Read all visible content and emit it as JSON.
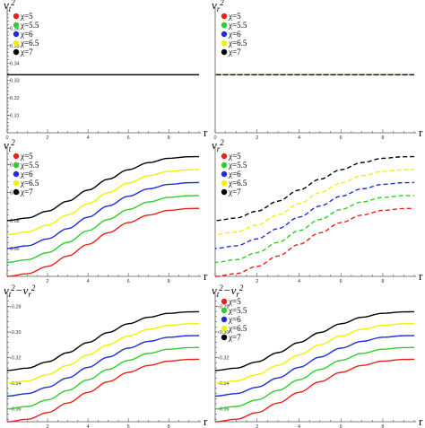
{
  "figure": {
    "legend_entries": [
      {
        "label": "χ=5",
        "color": "#e8221a"
      },
      {
        "label": "χ=5.5",
        "color": "#2bd02b"
      },
      {
        "label": "χ=6",
        "color": "#1f2fd6"
      },
      {
        "label": "χ=6.5",
        "color": "#f2f200"
      },
      {
        "label": "χ=7",
        "color": "#000000"
      }
    ]
  },
  "chart_data": [
    {
      "type": "line",
      "ylabel": "v_t^2",
      "xlabel": "r",
      "xlim": [
        0,
        9.5
      ],
      "ylim": [
        0.3,
        0.37
      ],
      "xticks": [
        0,
        2,
        4,
        6,
        8
      ],
      "yticks": [
        0.31,
        0.32,
        0.33,
        0.34,
        0.35,
        0.36
      ],
      "ytick_labels": [
        "0.31",
        "0.32",
        "0.33",
        "0.34",
        "0.35",
        "0.36"
      ],
      "legend": true,
      "legend_position": "top-left",
      "dashed": false,
      "series": [
        {
          "name": "χ=5",
          "x": [
            0,
            9.5
          ],
          "y": [
            0.3333,
            0.3333
          ]
        },
        {
          "name": "χ=5.5",
          "x": [
            0,
            9.5
          ],
          "y": [
            0.3333,
            0.3333
          ]
        },
        {
          "name": "χ=6",
          "x": [
            0,
            9.5
          ],
          "y": [
            0.3333,
            0.3333
          ]
        },
        {
          "name": "χ=6.5",
          "x": [
            0,
            9.5
          ],
          "y": [
            0.3333,
            0.3333
          ]
        },
        {
          "name": "χ=7",
          "x": [
            0,
            9.5
          ],
          "y": [
            0.3333,
            0.3333
          ]
        }
      ]
    },
    {
      "type": "line",
      "ylabel": "v_r^2",
      "xlabel": "r",
      "xlim": [
        0,
        9.5
      ],
      "ylim": [
        0.3,
        0.37
      ],
      "xticks": [
        0,
        2,
        4,
        6,
        8
      ],
      "yticks": [],
      "ytick_labels": [],
      "legend": true,
      "legend_position": "top-left",
      "dashed": true,
      "series": [
        {
          "name": "χ=5",
          "x": [
            0,
            9.5
          ],
          "y": [
            0.3333,
            0.3333
          ]
        },
        {
          "name": "χ=5.5",
          "x": [
            0,
            9.5
          ],
          "y": [
            0.3333,
            0.3333
          ]
        },
        {
          "name": "χ=6",
          "x": [
            0,
            9.5
          ],
          "y": [
            0.3333,
            0.3333
          ]
        },
        {
          "name": "χ=6.5",
          "x": [
            0,
            9.5
          ],
          "y": [
            0.3333,
            0.3333
          ]
        },
        {
          "name": "χ=7",
          "x": [
            0,
            9.5
          ],
          "y": [
            0.3333,
            0.3333
          ]
        }
      ]
    },
    {
      "type": "line",
      "ylabel": "v_t^2",
      "xlabel": "r",
      "xlim": [
        0,
        9.5
      ],
      "ylim": [
        0.04,
        0.13
      ],
      "xticks": [
        2,
        4,
        6,
        8
      ],
      "yticks": [
        0.06,
        0.08,
        0.1,
        0.12
      ],
      "ytick_labels": [
        "0.06",
        "0.08",
        "0.10",
        "0.12"
      ],
      "legend": true,
      "legend_position": "top-left",
      "dashed": false,
      "series": [
        {
          "name": "χ=5",
          "x": [
            0,
            1,
            2,
            3,
            4,
            5,
            6,
            7,
            8,
            9,
            9.5
          ],
          "y": [
            0.04,
            0.0419,
            0.0471,
            0.0546,
            0.0629,
            0.0712,
            0.0785,
            0.0839,
            0.0873,
            0.0886,
            0.0887
          ]
        },
        {
          "name": "χ=5.5",
          "x": [
            0,
            1,
            2,
            3,
            4,
            5,
            6,
            7,
            8,
            9,
            9.5
          ],
          "y": [
            0.05,
            0.0519,
            0.057,
            0.0644,
            0.0727,
            0.0808,
            0.0879,
            0.0933,
            0.0966,
            0.0978,
            0.0979
          ]
        },
        {
          "name": "χ=6",
          "x": [
            0,
            1,
            2,
            3,
            4,
            5,
            6,
            7,
            8,
            9,
            9.5
          ],
          "y": [
            0.06,
            0.0619,
            0.0669,
            0.0742,
            0.0824,
            0.0904,
            0.0974,
            0.1027,
            0.1059,
            0.1071,
            0.1072
          ]
        },
        {
          "name": "χ=6.5",
          "x": [
            0,
            1,
            2,
            3,
            4,
            5,
            6,
            7,
            8,
            9,
            9.5
          ],
          "y": [
            0.07,
            0.0718,
            0.0768,
            0.084,
            0.0921,
            0.1,
            0.1069,
            0.1121,
            0.1152,
            0.1164,
            0.1165
          ]
        },
        {
          "name": "χ=7",
          "x": [
            0,
            1,
            2,
            3,
            4,
            5,
            6,
            7,
            8,
            9,
            9.5
          ],
          "y": [
            0.08,
            0.0818,
            0.0867,
            0.0939,
            0.1018,
            0.1096,
            0.1164,
            0.1215,
            0.1246,
            0.1257,
            0.1258
          ]
        }
      ]
    },
    {
      "type": "line",
      "ylabel": "v_r^2",
      "xlabel": "r",
      "xlim": [
        0,
        9.5
      ],
      "ylim": [
        0.04,
        0.13
      ],
      "xticks": [
        2,
        4,
        6,
        8
      ],
      "yticks": [],
      "ytick_labels": [],
      "legend": true,
      "legend_position": "top-left",
      "dashed": true,
      "series": [
        {
          "name": "χ=5",
          "x": [
            0,
            1,
            2,
            3,
            4,
            5,
            6,
            7,
            8,
            9,
            9.5
          ],
          "y": [
            0.04,
            0.0419,
            0.0471,
            0.0546,
            0.0629,
            0.0712,
            0.0785,
            0.0839,
            0.0873,
            0.0886,
            0.0887
          ]
        },
        {
          "name": "χ=5.5",
          "x": [
            0,
            1,
            2,
            3,
            4,
            5,
            6,
            7,
            8,
            9,
            9.5
          ],
          "y": [
            0.05,
            0.0519,
            0.057,
            0.0644,
            0.0727,
            0.0808,
            0.0879,
            0.0933,
            0.0966,
            0.0978,
            0.0979
          ]
        },
        {
          "name": "χ=6",
          "x": [
            0,
            1,
            2,
            3,
            4,
            5,
            6,
            7,
            8,
            9,
            9.5
          ],
          "y": [
            0.06,
            0.0619,
            0.0669,
            0.0742,
            0.0824,
            0.0904,
            0.0974,
            0.1027,
            0.1059,
            0.1071,
            0.1072
          ]
        },
        {
          "name": "χ=6.5",
          "x": [
            0,
            1,
            2,
            3,
            4,
            5,
            6,
            7,
            8,
            9,
            9.5
          ],
          "y": [
            0.07,
            0.0718,
            0.0768,
            0.084,
            0.0921,
            0.1,
            0.1069,
            0.1121,
            0.1152,
            0.1164,
            0.1165
          ]
        },
        {
          "name": "χ=7",
          "x": [
            0,
            1,
            2,
            3,
            4,
            5,
            6,
            7,
            8,
            9,
            9.5
          ],
          "y": [
            0.08,
            0.0818,
            0.0867,
            0.0939,
            0.1018,
            0.1096,
            0.1164,
            0.1215,
            0.1246,
            0.1257,
            0.1258
          ]
        }
      ]
    },
    {
      "type": "line",
      "ylabel": "v_t^2−v_r^2",
      "xlabel": "r",
      "xlim": [
        0,
        9.5
      ],
      "ylim": [
        -0.37,
        -0.272
      ],
      "xticks": [
        2,
        4,
        6,
        8
      ],
      "yticks": [
        -0.36,
        -0.34,
        -0.32,
        -0.3,
        -0.28
      ],
      "ytick_labels": [
        "-0.36",
        "-0.34",
        "-0.32",
        "-0.30",
        "-0.28"
      ],
      "legend": false,
      "dashed": false,
      "series": [
        {
          "name": "χ=5",
          "x": [
            0,
            1,
            2,
            3,
            4,
            5,
            6,
            7,
            8,
            9,
            9.5
          ],
          "y": [
            -0.37,
            -0.3681,
            -0.3629,
            -0.3554,
            -0.3471,
            -0.3388,
            -0.3315,
            -0.3261,
            -0.3227,
            -0.3214,
            -0.3213
          ]
        },
        {
          "name": "χ=5.5",
          "x": [
            0,
            1,
            2,
            3,
            4,
            5,
            6,
            7,
            8,
            9,
            9.5
          ],
          "y": [
            -0.36,
            -0.3581,
            -0.353,
            -0.3456,
            -0.3373,
            -0.3292,
            -0.3221,
            -0.3167,
            -0.3134,
            -0.3122,
            -0.3121
          ]
        },
        {
          "name": "χ=6",
          "x": [
            0,
            1,
            2,
            3,
            4,
            5,
            6,
            7,
            8,
            9,
            9.5
          ],
          "y": [
            -0.35,
            -0.3481,
            -0.3431,
            -0.3358,
            -0.3276,
            -0.3196,
            -0.3126,
            -0.3073,
            -0.3041,
            -0.3029,
            -0.3028
          ]
        },
        {
          "name": "χ=6.5",
          "x": [
            0,
            1,
            2,
            3,
            4,
            5,
            6,
            7,
            8,
            9,
            9.5
          ],
          "y": [
            -0.34,
            -0.3382,
            -0.3332,
            -0.326,
            -0.3179,
            -0.31,
            -0.3031,
            -0.2979,
            -0.2948,
            -0.2936,
            -0.2935
          ]
        },
        {
          "name": "χ=7",
          "x": [
            0,
            1,
            2,
            3,
            4,
            5,
            6,
            7,
            8,
            9,
            9.5
          ],
          "y": [
            -0.33,
            -0.3282,
            -0.3233,
            -0.3161,
            -0.3082,
            -0.3004,
            -0.2936,
            -0.2885,
            -0.2854,
            -0.2843,
            -0.2842
          ]
        }
      ]
    },
    {
      "type": "line",
      "ylabel": "v_t^2−v_r^2",
      "xlabel": "r",
      "xlim": [
        0,
        9.5
      ],
      "ylim": [
        -0.37,
        -0.272
      ],
      "xticks": [
        2,
        4,
        6,
        8
      ],
      "yticks": [
        -0.36,
        -0.34,
        -0.32,
        -0.3,
        -0.28
      ],
      "ytick_labels": [
        "-0.36",
        "-0.34",
        "-0.32",
        "-0.30",
        "-0.28"
      ],
      "legend": true,
      "legend_position": "top-left",
      "dashed": false,
      "series": [
        {
          "name": "χ=5",
          "x": [
            0,
            1,
            2,
            3,
            4,
            5,
            6,
            7,
            8,
            9,
            9.5
          ],
          "y": [
            -0.37,
            -0.3681,
            -0.3629,
            -0.3554,
            -0.3471,
            -0.3388,
            -0.3315,
            -0.3261,
            -0.3227,
            -0.3214,
            -0.3213
          ]
        },
        {
          "name": "χ=5.5",
          "x": [
            0,
            1,
            2,
            3,
            4,
            5,
            6,
            7,
            8,
            9,
            9.5
          ],
          "y": [
            -0.36,
            -0.3581,
            -0.353,
            -0.3456,
            -0.3373,
            -0.3292,
            -0.3221,
            -0.3167,
            -0.3134,
            -0.3122,
            -0.3121
          ]
        },
        {
          "name": "χ=6",
          "x": [
            0,
            1,
            2,
            3,
            4,
            5,
            6,
            7,
            8,
            9,
            9.5
          ],
          "y": [
            -0.35,
            -0.3481,
            -0.3431,
            -0.3358,
            -0.3276,
            -0.3196,
            -0.3126,
            -0.3073,
            -0.3041,
            -0.3029,
            -0.3028
          ]
        },
        {
          "name": "χ=6.5",
          "x": [
            0,
            1,
            2,
            3,
            4,
            5,
            6,
            7,
            8,
            9,
            9.5
          ],
          "y": [
            -0.34,
            -0.3382,
            -0.3332,
            -0.326,
            -0.3179,
            -0.31,
            -0.3031,
            -0.2979,
            -0.2948,
            -0.2936,
            -0.2935
          ]
        },
        {
          "name": "χ=7",
          "x": [
            0,
            1,
            2,
            3,
            4,
            5,
            6,
            7,
            8,
            9,
            9.5
          ],
          "y": [
            -0.33,
            -0.3282,
            -0.3233,
            -0.3161,
            -0.3082,
            -0.3004,
            -0.2936,
            -0.2885,
            -0.2854,
            -0.2843,
            -0.2842
          ]
        }
      ]
    }
  ]
}
